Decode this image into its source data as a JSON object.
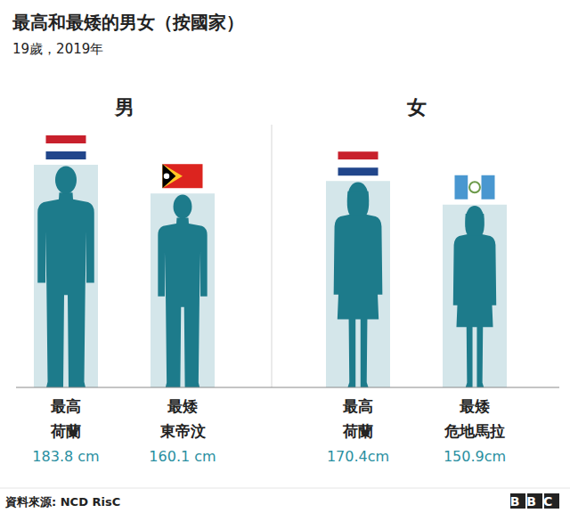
{
  "chart_data": {
    "type": "bar",
    "title": "最高和最矮的男女（按國家）",
    "subtitle": "19歲，2019年",
    "ylim": [
      0,
      183.8
    ],
    "tick_labels": false,
    "data_labels": true,
    "color": "#1d7b8b",
    "groups": [
      {
        "label": "男",
        "ranks": [
          "最高",
          "最矮"
        ],
        "categories": [
          "荷蘭",
          "東帝汶"
        ],
        "values": [
          183.8,
          160.1
        ],
        "value_labels": [
          "183.8 cm",
          "160.1 cm"
        ]
      },
      {
        "label": "女",
        "ranks": [
          "最高",
          "最矮"
        ],
        "categories": [
          "荷蘭",
          "危地馬拉"
        ],
        "values": [
          170.4,
          150.9
        ],
        "value_labels": [
          "170.4cm",
          "150.9cm"
        ]
      }
    ],
    "source": "資料來源: NCD RisC",
    "logo": "BBC"
  }
}
